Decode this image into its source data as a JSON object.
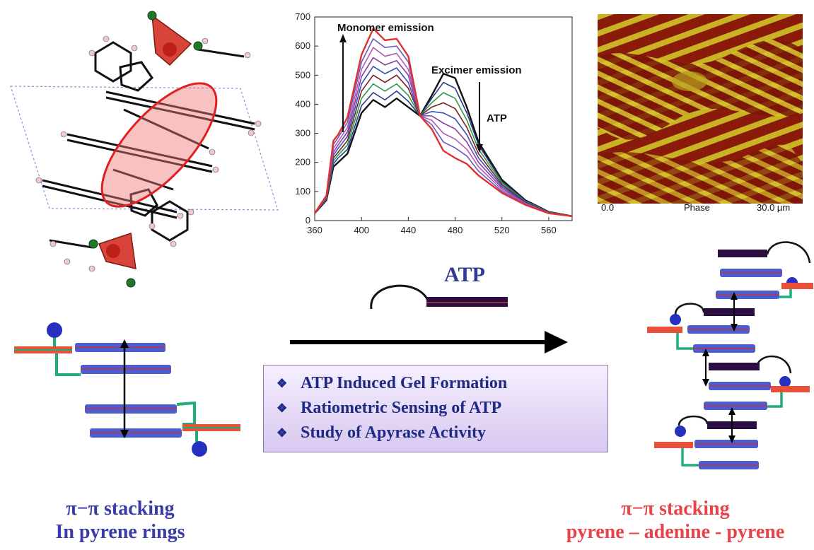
{
  "chart_data": {
    "type": "line",
    "x": [
      360,
      370,
      376,
      380,
      388,
      400,
      410,
      420,
      430,
      440,
      450,
      460,
      470,
      480,
      490,
      500,
      520,
      540,
      560,
      580
    ],
    "xlim": [
      360,
      580
    ],
    "ylim": [
      0,
      700
    ],
    "xticks": [
      360,
      400,
      440,
      480,
      520,
      560
    ],
    "yticks": [
      0,
      100,
      200,
      300,
      400,
      500,
      600,
      700
    ],
    "series": [
      {
        "color": "#111111",
        "values": [
          25,
          70,
          185,
          200,
          230,
          370,
          415,
          390,
          420,
          390,
          360,
          430,
          505,
          490,
          390,
          270,
          140,
          70,
          30,
          15
        ]
      },
      {
        "color": "#2a3a8a",
        "values": [
          25,
          72,
          195,
          215,
          245,
          395,
          440,
          415,
          445,
          410,
          360,
          420,
          475,
          455,
          370,
          260,
          135,
          68,
          30,
          15
        ]
      },
      {
        "color": "#2e9a4a",
        "values": [
          25,
          74,
          205,
          225,
          260,
          420,
          470,
          445,
          470,
          430,
          360,
          405,
          440,
          420,
          345,
          245,
          130,
          66,
          29,
          15
        ]
      },
      {
        "color": "#7a2020",
        "values": [
          25,
          76,
          215,
          235,
          275,
          445,
          500,
          475,
          500,
          455,
          360,
          390,
          405,
          385,
          320,
          230,
          124,
          64,
          28,
          15
        ]
      },
      {
        "color": "#3b4fb8",
        "values": [
          25,
          78,
          225,
          248,
          290,
          470,
          530,
          505,
          525,
          475,
          360,
          375,
          370,
          350,
          295,
          215,
          118,
          62,
          27,
          15
        ]
      },
      {
        "color": "#8a3fa0",
        "values": [
          25,
          80,
          235,
          260,
          305,
          495,
          560,
          535,
          550,
          500,
          360,
          360,
          335,
          315,
          270,
          200,
          112,
          60,
          27,
          15
        ]
      },
      {
        "color": "#b05ab8",
        "values": [
          25,
          82,
          248,
          272,
          320,
          520,
          595,
          565,
          575,
          520,
          360,
          345,
          300,
          280,
          245,
          185,
          106,
          58,
          26,
          15
        ]
      },
      {
        "color": "#6a5ac0",
        "values": [
          25,
          84,
          262,
          285,
          338,
          545,
          625,
          595,
          600,
          545,
          360,
          330,
          270,
          250,
          222,
          170,
          100,
          56,
          26,
          15
        ]
      },
      {
        "color": "#e03030",
        "values": [
          25,
          86,
          275,
          295,
          355,
          570,
          660,
          620,
          625,
          565,
          360,
          315,
          240,
          215,
          195,
          155,
          95,
          54,
          25,
          15
        ]
      }
    ],
    "annotations": {
      "monomer": "Monomer emission",
      "excimer": "Excimer emission",
      "atp": "ATP"
    }
  },
  "afm": {
    "left_label": "0.0",
    "center_label": "Phase",
    "right_label": "30.0 µm"
  },
  "atp_label": "ATP",
  "features": [
    "ATP Induced Gel Formation",
    "Ratiometric Sensing of ATP",
    "Study of Apyrase Activity"
  ],
  "caption_left": {
    "line1": "π−π stacking",
    "line2": "In pyrene rings"
  },
  "caption_right": {
    "line1": "π−π stacking",
    "line2": "pyrene – adenine - pyrene"
  },
  "colors": {
    "pyrene_bar": "#4a5ed0",
    "pyrene_stripe": "#c0304a",
    "linker_green": "#1fae7a",
    "adenine_bar": "#2a0f40",
    "head_blue": "#2530c0",
    "arrow": "#000000"
  }
}
